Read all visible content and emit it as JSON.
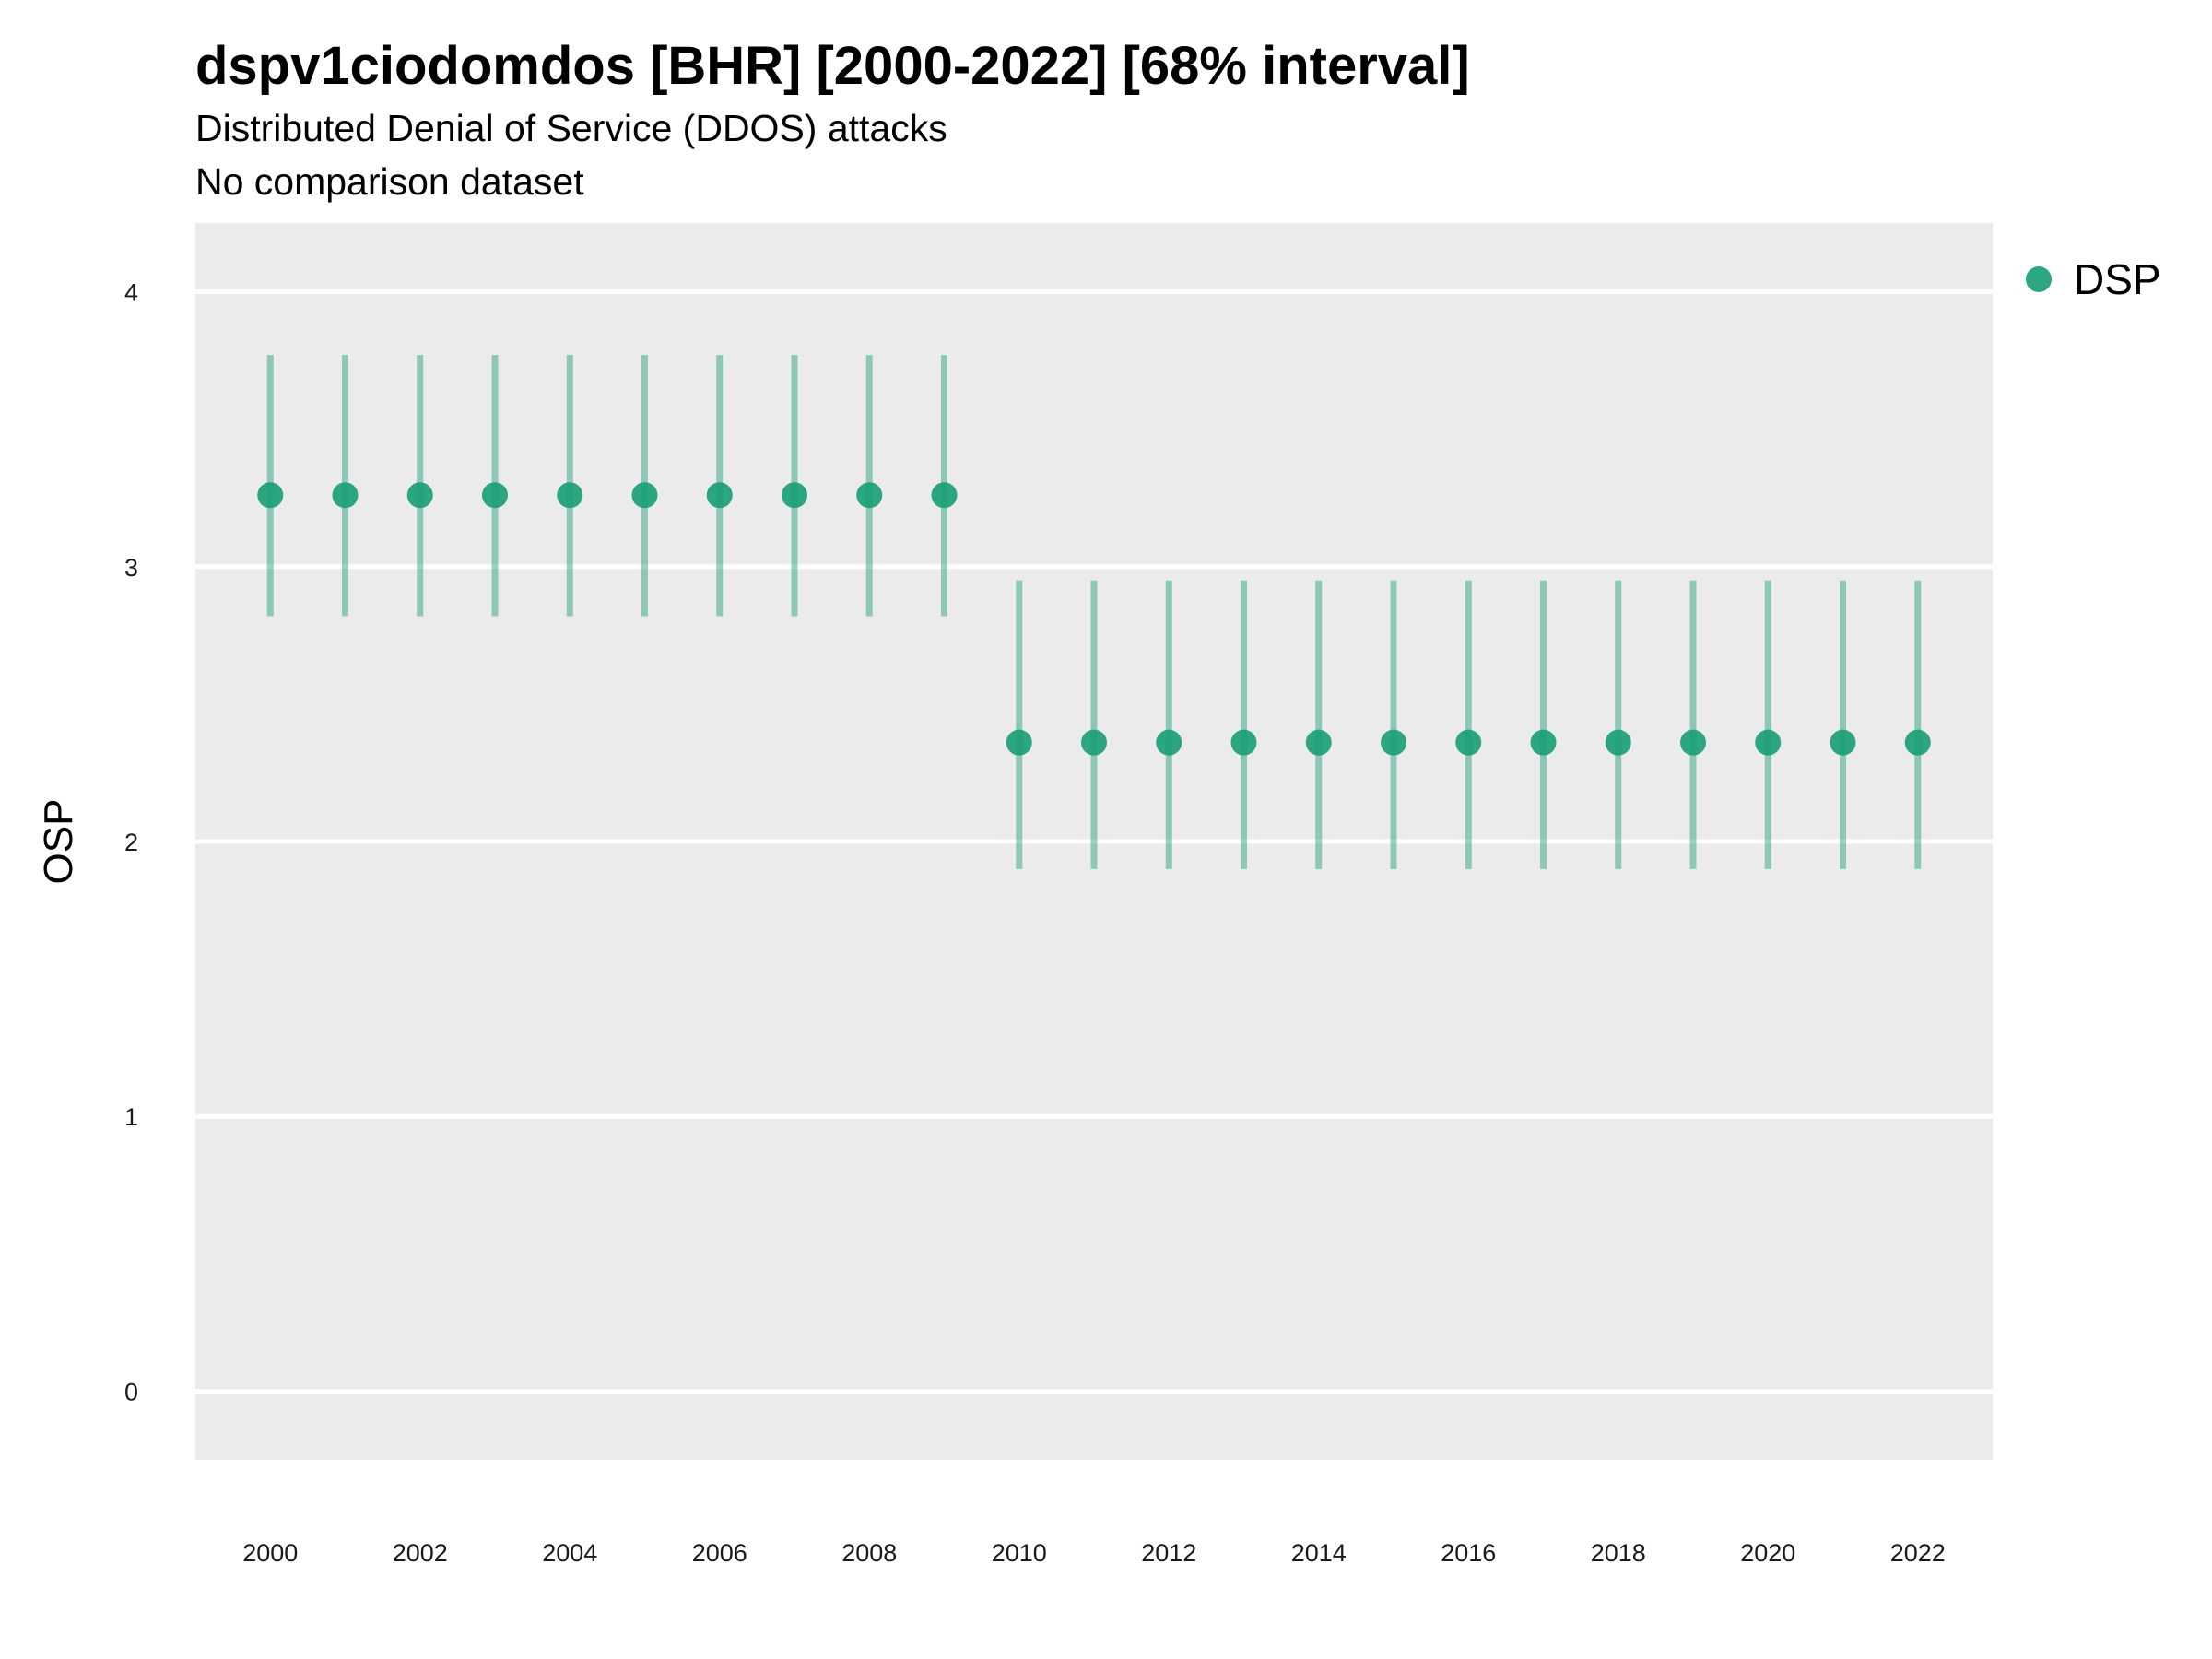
{
  "title": "dspv1ciodomdos [BHR] [2000-2022] [68% interval]",
  "subtitle": "Distributed Denial of Service (DDOS) attacks",
  "subtitle2": "No comparison dataset",
  "chart_data": {
    "type": "scatter",
    "title": "dspv1ciodomdos [BHR] [2000-2022] [68% interval]",
    "subtitle": "Distributed Denial of Service (DDOS) attacks",
    "ylabel": "OSP",
    "xlabel": "",
    "xlim": [
      1999,
      2023
    ],
    "ylim": [
      -0.25,
      4.25
    ],
    "x_ticks": [
      2000,
      2002,
      2004,
      2006,
      2008,
      2010,
      2012,
      2014,
      2016,
      2018,
      2020,
      2022
    ],
    "x_tick_labels": [
      "2000",
      "2002",
      "2004",
      "2006",
      "2008",
      "2010",
      "2012",
      "2014",
      "2016",
      "2018",
      "2020",
      "2022"
    ],
    "y_ticks": [
      0,
      1,
      2,
      3,
      4
    ],
    "y_tick_labels": [
      "0",
      "1",
      "2",
      "3",
      "4"
    ],
    "grid": true,
    "legend_position": "right",
    "series": [
      {
        "name": "DSP",
        "color": "#1B9E77",
        "x": [
          2000,
          2001,
          2002,
          2003,
          2004,
          2005,
          2006,
          2007,
          2008,
          2009,
          2010,
          2011,
          2012,
          2013,
          2014,
          2015,
          2016,
          2017,
          2018,
          2019,
          2020,
          2021,
          2022
        ],
        "y": [
          3.26,
          3.26,
          3.26,
          3.26,
          3.26,
          3.26,
          3.26,
          3.26,
          3.26,
          3.26,
          2.36,
          2.36,
          2.36,
          2.36,
          2.36,
          2.36,
          2.36,
          2.36,
          2.36,
          2.36,
          2.36,
          2.36,
          2.36
        ],
        "lower": [
          2.82,
          2.82,
          2.82,
          2.82,
          2.82,
          2.82,
          2.82,
          2.82,
          2.82,
          2.82,
          1.9,
          1.9,
          1.9,
          1.9,
          1.9,
          1.9,
          1.9,
          1.9,
          1.9,
          1.9,
          1.9,
          1.9,
          1.9
        ],
        "upper": [
          3.77,
          3.77,
          3.77,
          3.77,
          3.77,
          3.77,
          3.77,
          3.77,
          3.77,
          3.77,
          2.95,
          2.95,
          2.95,
          2.95,
          2.95,
          2.95,
          2.95,
          2.95,
          2.95,
          2.95,
          2.95,
          2.95,
          2.95
        ]
      }
    ]
  }
}
